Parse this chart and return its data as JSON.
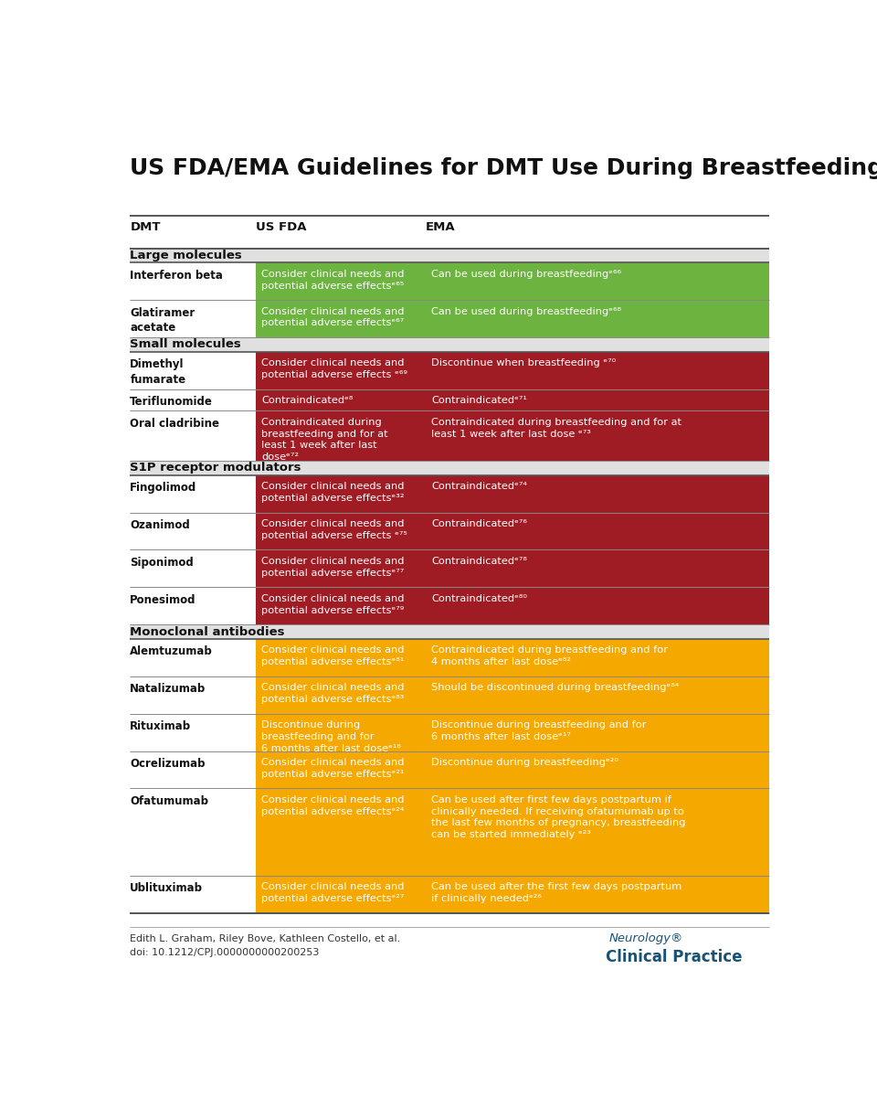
{
  "title": "US FDA/EMA Guidelines for DMT Use During Breastfeeding",
  "col_headers": [
    "DMT",
    "US FDA",
    "EMA"
  ],
  "bg_color": "#ffffff",
  "section_bg": "#e0e0e0",
  "green": "#6db33f",
  "red": "#a01c24",
  "orange": "#f5a800",
  "footer_text1": "Edith L. Graham, Riley Bove, Kathleen Costello, et al.",
  "footer_text2": "doi: 10.1212/CPJ.0000000000200253",
  "sections": [
    {
      "section_label": "Large molecules",
      "rows": [
        {
          "dmt": "Interferon beta",
          "fda": "Consider clinical needs and\npotential adverse effectsᵉ⁶⁵",
          "ema": "Can be used during breastfeedingᵉ⁶⁶",
          "color": "green"
        },
        {
          "dmt": "Glatiramer\nacetate",
          "fda": "Consider clinical needs and\npotential adverse effectsᵉ⁶⁷",
          "ema": "Can be used during breastfeedingᵉ⁶⁸",
          "color": "green"
        }
      ]
    },
    {
      "section_label": "Small molecules",
      "rows": [
        {
          "dmt": "Dimethyl\nfumarate",
          "fda": "Consider clinical needs and\npotential adverse effects ᵉ⁶⁹",
          "ema": "Discontinue when breastfeeding ᵉ⁷⁰",
          "color": "red"
        },
        {
          "dmt": "Teriflunomide",
          "fda": "Contraindicatedᵉ⁸",
          "ema": "Contraindicatedᵉ⁷¹",
          "color": "red"
        },
        {
          "dmt": "Oral cladribine",
          "fda": "Contraindicated during\nbreastfeeding and for at\nleast 1 week after last\ndoseᵉ⁷²",
          "ema": "Contraindicated during breastfeeding and for at\nleast 1 week after last dose ᵉ⁷³",
          "color": "red"
        }
      ]
    },
    {
      "section_label": "S1P receptor modulators",
      "rows": [
        {
          "dmt": "Fingolimod",
          "fda": "Consider clinical needs and\npotential adverse effectsᵉ³²",
          "ema": "Contraindicatedᵉ⁷⁴",
          "color": "red"
        },
        {
          "dmt": "Ozanimod",
          "fda": "Consider clinical needs and\npotential adverse effects ᵉ⁷⁵",
          "ema": "Contraindicatedᵉ⁷⁶",
          "color": "red"
        },
        {
          "dmt": "Siponimod",
          "fda": "Consider clinical needs and\npotential adverse effectsᵉ⁷⁷",
          "ema": "Contraindicatedᵉ⁷⁸",
          "color": "red"
        },
        {
          "dmt": "Ponesimod",
          "fda": "Consider clinical needs and\npotential adverse effectsᵉ⁷⁹",
          "ema": "Contraindicatedᵉ⁸⁰",
          "color": "red"
        }
      ]
    },
    {
      "section_label": "Monoclonal antibodies",
      "rows": [
        {
          "dmt": "Alemtuzumab",
          "fda": "Consider clinical needs and\npotential adverse effectsᵉ⁸¹",
          "ema": "Contraindicated during breastfeeding and for\n4 months after last doseᵉ⁸²",
          "color": "orange"
        },
        {
          "dmt": "Natalizumab",
          "fda": "Consider clinical needs and\npotential adverse effectsᵉ⁸³",
          "ema": "Should be discontinued during breastfeedingᵉ⁸⁴",
          "color": "orange"
        },
        {
          "dmt": "Rituximab",
          "fda": "Discontinue during\nbreastfeeding and for\n6 months after last doseᵉ¹⁸",
          "ema": "Discontinue during breastfeeding and for\n6 months after last doseᵉ¹⁷",
          "color": "orange"
        },
        {
          "dmt": "Ocrelizumab",
          "fda": "Consider clinical needs and\npotential adverse effectsᵉ²¹",
          "ema": "Discontinue during breastfeedingᵉ²⁰",
          "color": "orange"
        },
        {
          "dmt": "Ofatumumab",
          "fda": "Consider clinical needs and\npotential adverse effectsᵉ²⁴",
          "ema": "Can be used after first few days postpartum if\nclinically needed. If receiving ofatumumab up to\nthe last few months of pregnancy, breastfeeding\ncan be started immediately ᵉ²³",
          "color": "orange"
        },
        {
          "dmt": "Ublituximab",
          "fda": "Consider clinical needs and\npotential adverse effectsᵉ²⁷",
          "ema": "Can be used after the first few days postpartum\nif clinically neededᵉ²⁶",
          "color": "orange"
        }
      ]
    }
  ]
}
